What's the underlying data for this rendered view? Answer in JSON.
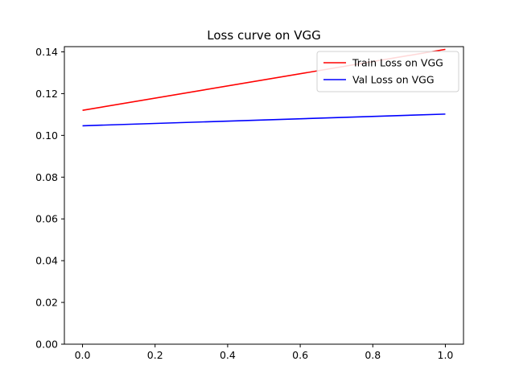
{
  "chart_data": {
    "type": "line",
    "title": "Loss curve on VGG",
    "xlabel": "",
    "ylabel": "",
    "x": [
      0,
      1
    ],
    "xlim": [
      -0.05,
      1.05
    ],
    "ylim": [
      0,
      0.1425
    ],
    "xticks": [
      "0.0",
      "0.2",
      "0.4",
      "0.6",
      "0.8",
      "1.0"
    ],
    "yticks": [
      "0.00",
      "0.02",
      "0.04",
      "0.06",
      "0.08",
      "0.10",
      "0.12",
      "0.14"
    ],
    "grid": false,
    "legend_position": "top-right",
    "series": [
      {
        "name": "Train Loss on VGG",
        "values": [
          0.112,
          0.1412
        ],
        "color": "#ff0000"
      },
      {
        "name": "Val Loss on VGG",
        "values": [
          0.1046,
          0.1102
        ],
        "color": "#0000ff"
      }
    ]
  }
}
